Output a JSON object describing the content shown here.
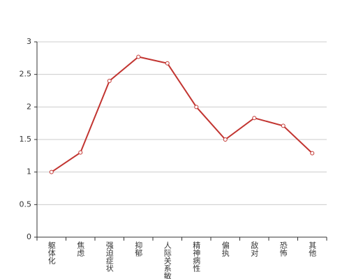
{
  "chart_data": {
    "type": "line",
    "categories": [
      "躯体化",
      "焦虑",
      "强迫症状",
      "抑郁",
      "人际关系敏感",
      "精神病性",
      "偏执",
      "敌对",
      "恐怖",
      "其他"
    ],
    "values": [
      1.0,
      1.3,
      2.4,
      2.77,
      2.67,
      2.0,
      1.5,
      1.83,
      1.71,
      1.29
    ],
    "color": "#c23531",
    "ylim": [
      0,
      3
    ],
    "yticks": [
      0,
      0.5,
      1,
      1.5,
      2,
      2.5,
      3
    ],
    "grid": true
  }
}
